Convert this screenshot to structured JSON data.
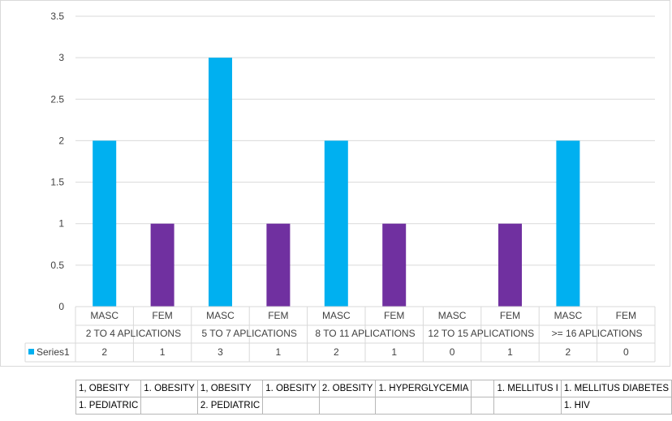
{
  "chart_data": {
    "type": "bar",
    "groups": [
      "2 TO 4 APLICATIONS",
      "5 TO 7 APLICATIONS",
      "8 TO 11 APLICATIONS",
      "12 TO 15 APLICATIONS",
      ">= 16 APLICATIONS"
    ],
    "categories": [
      "MASC",
      "FEM",
      "MASC",
      "FEM",
      "MASC",
      "FEM",
      "MASC",
      "FEM",
      "MASC",
      "FEM"
    ],
    "series": [
      {
        "name": "Series1",
        "values": [
          2,
          1,
          3,
          1,
          2,
          1,
          0,
          1,
          2,
          0
        ]
      }
    ],
    "bar_colors": {
      "MASC": "#00b0f0",
      "FEM": "#7030a0"
    },
    "legend_color": "#00b0f0",
    "ylim": [
      0,
      3.5
    ],
    "yticks": [
      "0",
      "0.5",
      "1",
      "1.5",
      "2",
      "2.5",
      "3",
      "3.5"
    ],
    "grid": true,
    "legend_placement": "data-table"
  },
  "notes_table": [
    [
      "1, OBESITY",
      "1. OBESITY",
      "1, OBESITY",
      "1. OBESITY",
      "2. OBESITY",
      "1. HYPERGLYCEMIA",
      "",
      "1. MELLITUS I",
      "1. MELLITUS DIABETES"
    ],
    [
      "1. PEDIATRIC",
      "",
      "2. PEDIATRIC",
      "",
      "",
      "",
      "",
      "",
      "1. HIV"
    ]
  ]
}
